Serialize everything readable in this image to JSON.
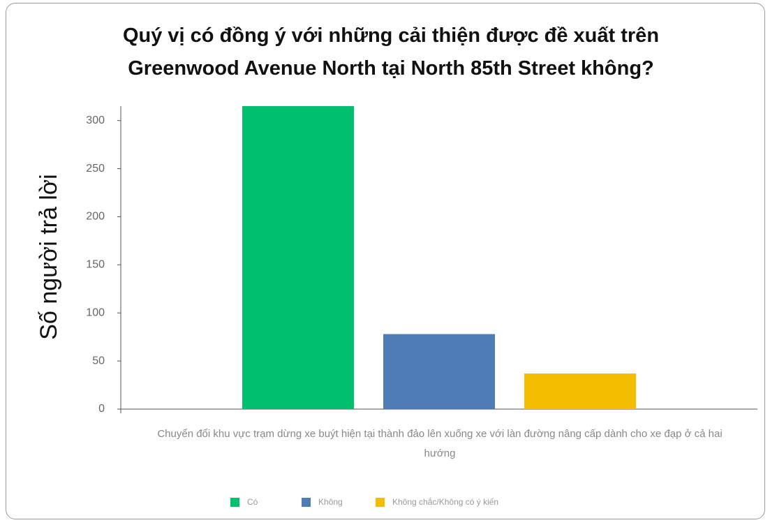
{
  "chart_data": {
    "type": "bar",
    "title": "Quý vị có đồng ý với những cải thiện được đề xuất trên Greenwood Avenue North tại North 85th Street không?",
    "y_label": "Số người trả lời",
    "categories": [
      "Chuyển đổi khu vực trạm dừng xe buýt hiện tại thành đảo lên xuống xe với làn đường nâng cấp dành cho xe đạp ở cả hai hướng"
    ],
    "series": [
      {
        "name": "Có",
        "color": "#00bf6f",
        "values": [
          315
        ]
      },
      {
        "name": "Không",
        "color": "#4f7cb7",
        "values": [
          78
        ]
      },
      {
        "name": "Không chắc/Không có ý kiến",
        "color": "#f5bd00",
        "values": [
          37
        ]
      }
    ],
    "ylim": [
      0,
      315
    ],
    "yticks": [
      0,
      50,
      100,
      150,
      200,
      250,
      300
    ],
    "legend": "bottom"
  }
}
